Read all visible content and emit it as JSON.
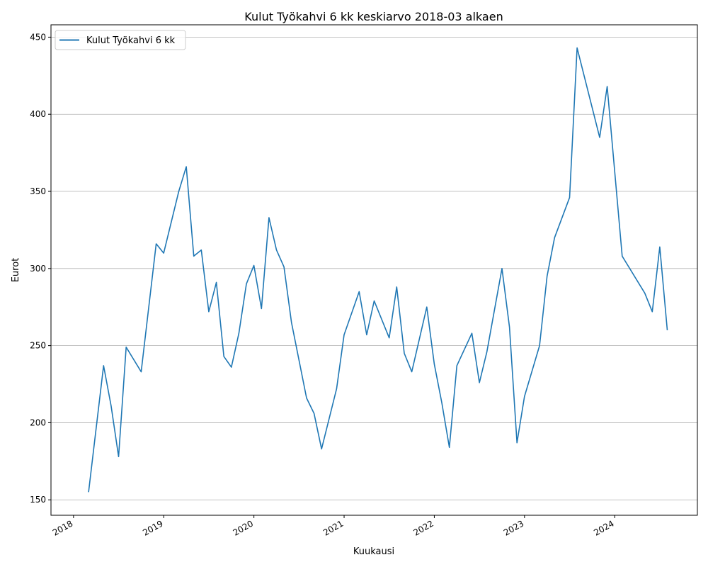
{
  "chart_data": {
    "type": "line",
    "title": "Kulut Työkahvi 6 kk keskiarvo 2018-03 alkaen",
    "xlabel": "Kuukausi",
    "ylabel": "Eurot",
    "xlim": [
      "2017-10",
      "2024-12"
    ],
    "ylim": [
      140,
      458
    ],
    "y_ticks": [
      150,
      200,
      250,
      300,
      350,
      400,
      450
    ],
    "x_ticks": [
      "2018",
      "2019",
      "2020",
      "2021",
      "2022",
      "2023",
      "2024"
    ],
    "grid": "horizontal",
    "legend_position": "top-left",
    "series": [
      {
        "name": "Kulut Työkahvi 6 kk",
        "color": "#1f77b4",
        "points": [
          [
            "2018-03",
            155
          ],
          [
            "2018-05",
            237
          ],
          [
            "2018-06",
            211
          ],
          [
            "2018-07",
            178
          ],
          [
            "2018-08",
            249
          ],
          [
            "2018-10",
            233
          ],
          [
            "2018-12",
            316
          ],
          [
            "2019-01",
            310
          ],
          [
            "2019-03",
            350
          ],
          [
            "2019-04",
            366
          ],
          [
            "2019-05",
            308
          ],
          [
            "2019-06",
            312
          ],
          [
            "2019-07",
            272
          ],
          [
            "2019-08",
            291
          ],
          [
            "2019-09",
            243
          ],
          [
            "2019-10",
            236
          ],
          [
            "2019-11",
            258
          ],
          [
            "2019-12",
            290
          ],
          [
            "2020-01",
            302
          ],
          [
            "2020-02",
            274
          ],
          [
            "2020-03",
            333
          ],
          [
            "2020-04",
            312
          ],
          [
            "2020-05",
            301
          ],
          [
            "2020-06",
            265
          ],
          [
            "2020-08",
            216
          ],
          [
            "2020-09",
            206
          ],
          [
            "2020-10",
            183
          ],
          [
            "2020-12",
            222
          ],
          [
            "2021-01",
            257
          ],
          [
            "2021-03",
            285
          ],
          [
            "2021-04",
            257
          ],
          [
            "2021-05",
            279
          ],
          [
            "2021-07",
            255
          ],
          [
            "2021-08",
            288
          ],
          [
            "2021-09",
            245
          ],
          [
            "2021-10",
            233
          ],
          [
            "2021-12",
            275
          ],
          [
            "2022-01",
            238
          ],
          [
            "2022-02",
            213
          ],
          [
            "2022-03",
            184
          ],
          [
            "2022-04",
            237
          ],
          [
            "2022-06",
            258
          ],
          [
            "2022-07",
            226
          ],
          [
            "2022-08",
            246
          ],
          [
            "2022-10",
            300
          ],
          [
            "2022-11",
            262
          ],
          [
            "2022-12",
            187
          ],
          [
            "2023-01",
            217
          ],
          [
            "2023-03",
            250
          ],
          [
            "2023-04",
            295
          ],
          [
            "2023-05",
            320
          ],
          [
            "2023-07",
            346
          ],
          [
            "2023-08",
            443
          ],
          [
            "2023-11",
            385
          ],
          [
            "2023-12",
            418
          ],
          [
            "2024-02",
            308
          ],
          [
            "2024-05",
            284
          ],
          [
            "2024-06",
            272
          ],
          [
            "2024-07",
            314
          ],
          [
            "2024-08",
            260
          ]
        ]
      }
    ]
  }
}
